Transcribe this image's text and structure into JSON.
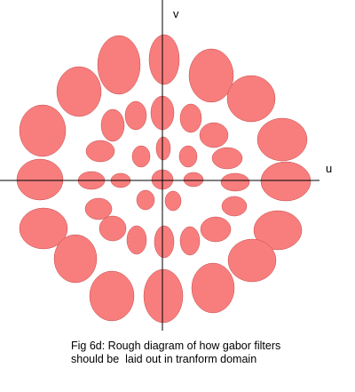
{
  "axes": {
    "u_label": "u",
    "v_label": "v"
  },
  "caption": {
    "line1": "Fig 6d: Rough diagram of how gabor filters",
    "line2": "should be  laid out in tranform domain"
  },
  "colors": {
    "filter_fill": "#f87e7e",
    "filter_stroke": "#c44a4a",
    "axis": "#000000"
  }
}
